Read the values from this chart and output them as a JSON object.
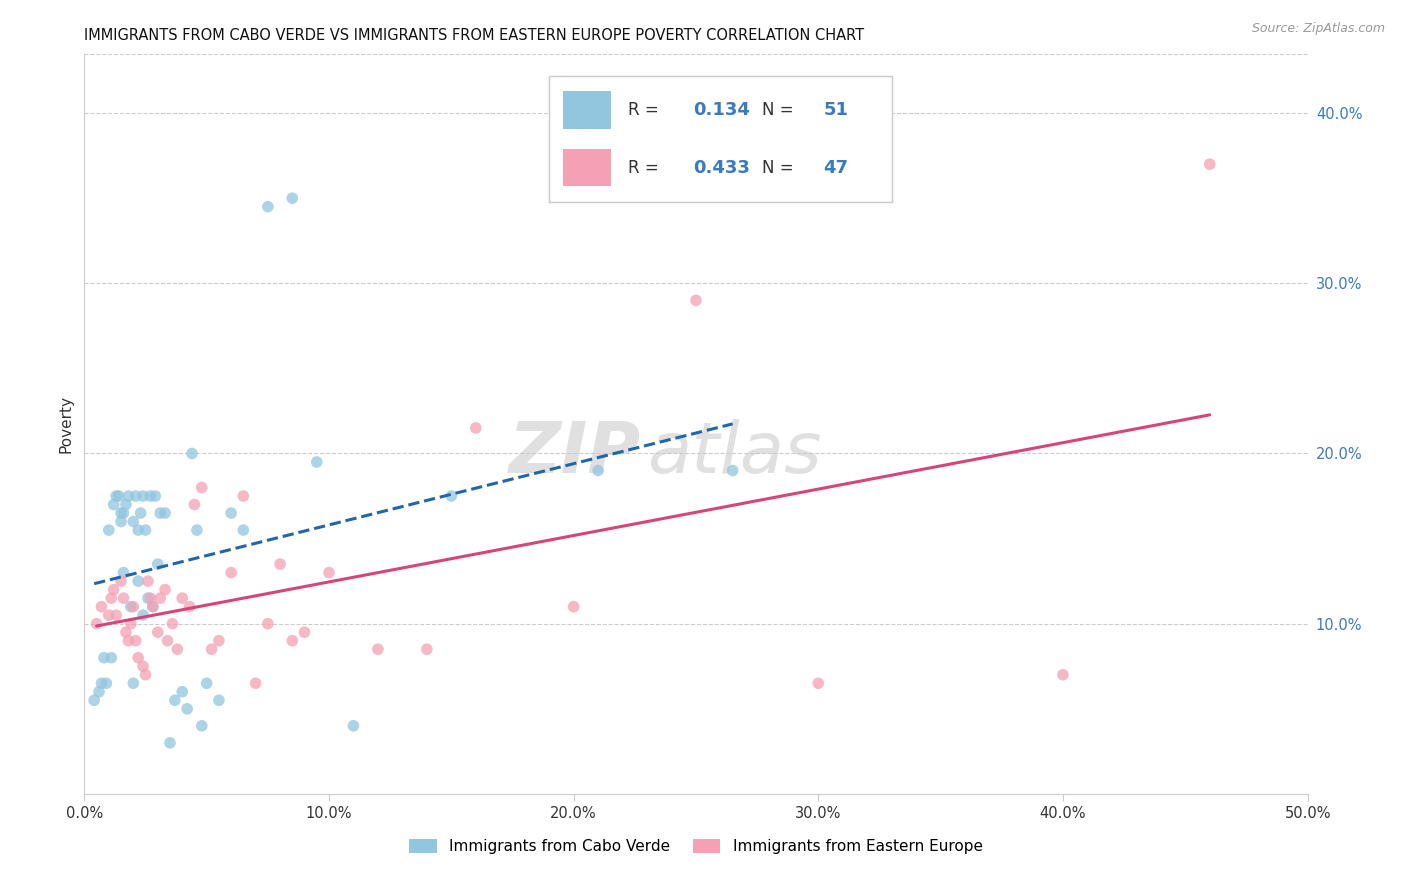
{
  "title": "IMMIGRANTS FROM CABO VERDE VS IMMIGRANTS FROM EASTERN EUROPE POVERTY CORRELATION CHART",
  "source": "Source: ZipAtlas.com",
  "ylabel": "Poverty",
  "ylabel_right_ticks": [
    "10.0%",
    "20.0%",
    "30.0%",
    "40.0%"
  ],
  "ylabel_right_vals": [
    0.1,
    0.2,
    0.3,
    0.4
  ],
  "xlim": [
    0.0,
    0.5
  ],
  "ylim": [
    0.0,
    0.435
  ],
  "legend1_label": "Immigrants from Cabo Verde",
  "legend2_label": "Immigrants from Eastern Europe",
  "R_blue": "0.134",
  "N_blue": "51",
  "R_pink": "0.433",
  "N_pink": "47",
  "blue_scatter_color": "#92c5de",
  "pink_scatter_color": "#f4a0b5",
  "blue_line_color": "#2166ac",
  "pink_line_color": "#d6457a",
  "text_dark": "#333333",
  "text_blue": "#3a7abf",
  "grid_color": "#cccccc",
  "cabo_verde_x": [
    0.004,
    0.006,
    0.007,
    0.008,
    0.009,
    0.01,
    0.011,
    0.012,
    0.013,
    0.014,
    0.015,
    0.015,
    0.016,
    0.016,
    0.017,
    0.018,
    0.019,
    0.02,
    0.02,
    0.021,
    0.022,
    0.022,
    0.023,
    0.024,
    0.024,
    0.025,
    0.026,
    0.027,
    0.028,
    0.029,
    0.03,
    0.031,
    0.033,
    0.035,
    0.037,
    0.04,
    0.042,
    0.044,
    0.046,
    0.048,
    0.05,
    0.055,
    0.06,
    0.065,
    0.075,
    0.085,
    0.095,
    0.11,
    0.15,
    0.21,
    0.265
  ],
  "cabo_verde_y": [
    0.055,
    0.06,
    0.065,
    0.08,
    0.065,
    0.155,
    0.08,
    0.17,
    0.175,
    0.175,
    0.16,
    0.165,
    0.165,
    0.13,
    0.17,
    0.175,
    0.11,
    0.065,
    0.16,
    0.175,
    0.125,
    0.155,
    0.165,
    0.105,
    0.175,
    0.155,
    0.115,
    0.175,
    0.11,
    0.175,
    0.135,
    0.165,
    0.165,
    0.03,
    0.055,
    0.06,
    0.05,
    0.2,
    0.155,
    0.04,
    0.065,
    0.055,
    0.165,
    0.155,
    0.345,
    0.35,
    0.195,
    0.04,
    0.175,
    0.19,
    0.19
  ],
  "eastern_europe_x": [
    0.005,
    0.007,
    0.01,
    0.011,
    0.012,
    0.013,
    0.015,
    0.016,
    0.017,
    0.018,
    0.019,
    0.02,
    0.021,
    0.022,
    0.024,
    0.025,
    0.026,
    0.027,
    0.028,
    0.03,
    0.031,
    0.033,
    0.034,
    0.036,
    0.038,
    0.04,
    0.043,
    0.045,
    0.048,
    0.052,
    0.055,
    0.06,
    0.065,
    0.07,
    0.075,
    0.08,
    0.085,
    0.09,
    0.1,
    0.12,
    0.14,
    0.16,
    0.2,
    0.25,
    0.3,
    0.4,
    0.46
  ],
  "eastern_europe_y": [
    0.1,
    0.11,
    0.105,
    0.115,
    0.12,
    0.105,
    0.125,
    0.115,
    0.095,
    0.09,
    0.1,
    0.11,
    0.09,
    0.08,
    0.075,
    0.07,
    0.125,
    0.115,
    0.11,
    0.095,
    0.115,
    0.12,
    0.09,
    0.1,
    0.085,
    0.115,
    0.11,
    0.17,
    0.18,
    0.085,
    0.09,
    0.13,
    0.175,
    0.065,
    0.1,
    0.135,
    0.09,
    0.095,
    0.13,
    0.085,
    0.085,
    0.215,
    0.11,
    0.29,
    0.065,
    0.07,
    0.37
  ]
}
